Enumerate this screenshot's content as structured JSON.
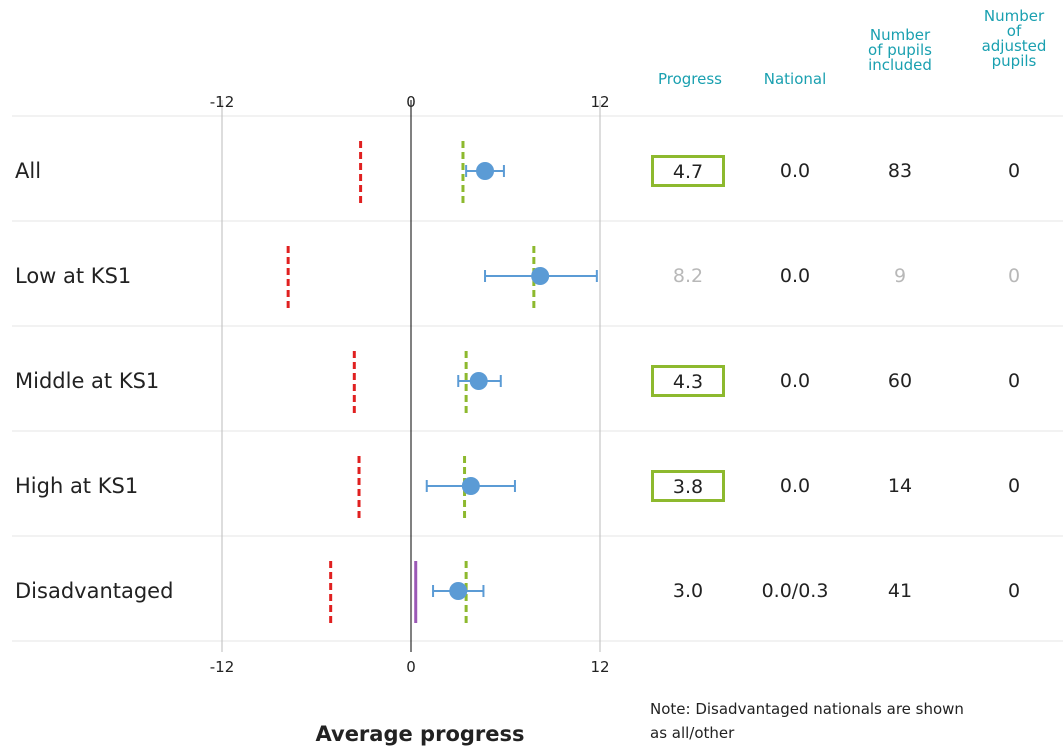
{
  "chart_data": {
    "type": "scatter",
    "xlabel": "Average progress",
    "xlim": [
      -12,
      12
    ],
    "xticks": [
      -12,
      0,
      12
    ],
    "categories": [
      "All",
      "Low at KS1",
      "Middle at KS1",
      "High at KS1",
      "Disadvantaged"
    ],
    "points": [
      {
        "label": "All",
        "value": 4.7,
        "ci_low": 3.5,
        "ci_high": 5.9,
        "green_ref": 3.3,
        "red_ref": -3.2
      },
      {
        "label": "Low at KS1",
        "value": 8.2,
        "ci_low": 4.7,
        "ci_high": 11.8,
        "green_ref": 7.8,
        "red_ref": -7.8
      },
      {
        "label": "Middle at KS1",
        "value": 4.3,
        "ci_low": 3.0,
        "ci_high": 5.7,
        "green_ref": 3.5,
        "red_ref": -3.6
      },
      {
        "label": "High at KS1",
        "value": 3.8,
        "ci_low": 1.0,
        "ci_high": 6.6,
        "green_ref": 3.4,
        "red_ref": -3.3
      },
      {
        "label": "Disadvantaged",
        "value": 3.0,
        "ci_low": 1.4,
        "ci_high": 4.6,
        "green_ref": 3.5,
        "red_ref": -5.1,
        "purple_ref": 0.3
      }
    ],
    "colors": {
      "point": "#5b9bd5",
      "green": "#8db92e",
      "red": "#e02020",
      "purple": "#9b59b6",
      "box": "#8db92e",
      "header": "#1aa0b0"
    }
  },
  "table": {
    "headers": {
      "progress": "Progress",
      "national": "National",
      "pupils": "Number\nof pupils\nincluded",
      "adjusted": "Number\nof\nadjusted\npupils"
    },
    "rows": [
      {
        "progress": "4.7",
        "national": "0.0",
        "pupils": "83",
        "adjusted": "0",
        "boxed": true,
        "muted": false
      },
      {
        "progress": "8.2",
        "national": "0.0",
        "pupils": "9",
        "adjusted": "0",
        "boxed": false,
        "muted": true
      },
      {
        "progress": "4.3",
        "national": "0.0",
        "pupils": "60",
        "adjusted": "0",
        "boxed": true,
        "muted": false
      },
      {
        "progress": "3.8",
        "national": "0.0",
        "pupils": "14",
        "adjusted": "0",
        "boxed": true,
        "muted": false
      },
      {
        "progress": "3.0",
        "national": "0.0/0.3",
        "pupils": "41",
        "adjusted": "0",
        "boxed": false,
        "muted": false
      }
    ]
  },
  "note": "Note: Disadvantaged nationals are shown as all/other"
}
